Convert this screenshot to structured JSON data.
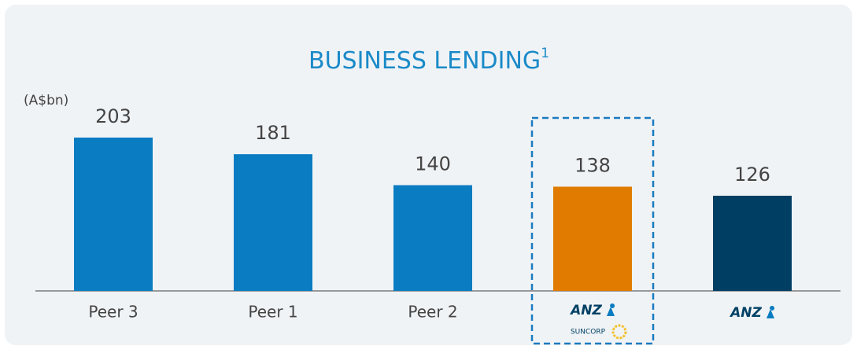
{
  "chart_data": {
    "type": "bar",
    "title": "BUSINESS LENDING",
    "title_footnote": "1",
    "unit_label": "(A$bn)",
    "categories": [
      "Peer 3",
      "Peer 1",
      "Peer 2",
      null,
      null
    ],
    "logos": [
      null,
      null,
      null,
      {
        "brand": "ANZ",
        "partner": "SUNCORP"
      },
      {
        "brand": "ANZ"
      }
    ],
    "values": [
      203,
      181,
      140,
      138,
      126
    ],
    "colors": [
      "#0a7cc1",
      "#0a7cc1",
      "#0a7cc1",
      "#e07b00",
      "#003f63"
    ],
    "highlight_index": 3
  }
}
